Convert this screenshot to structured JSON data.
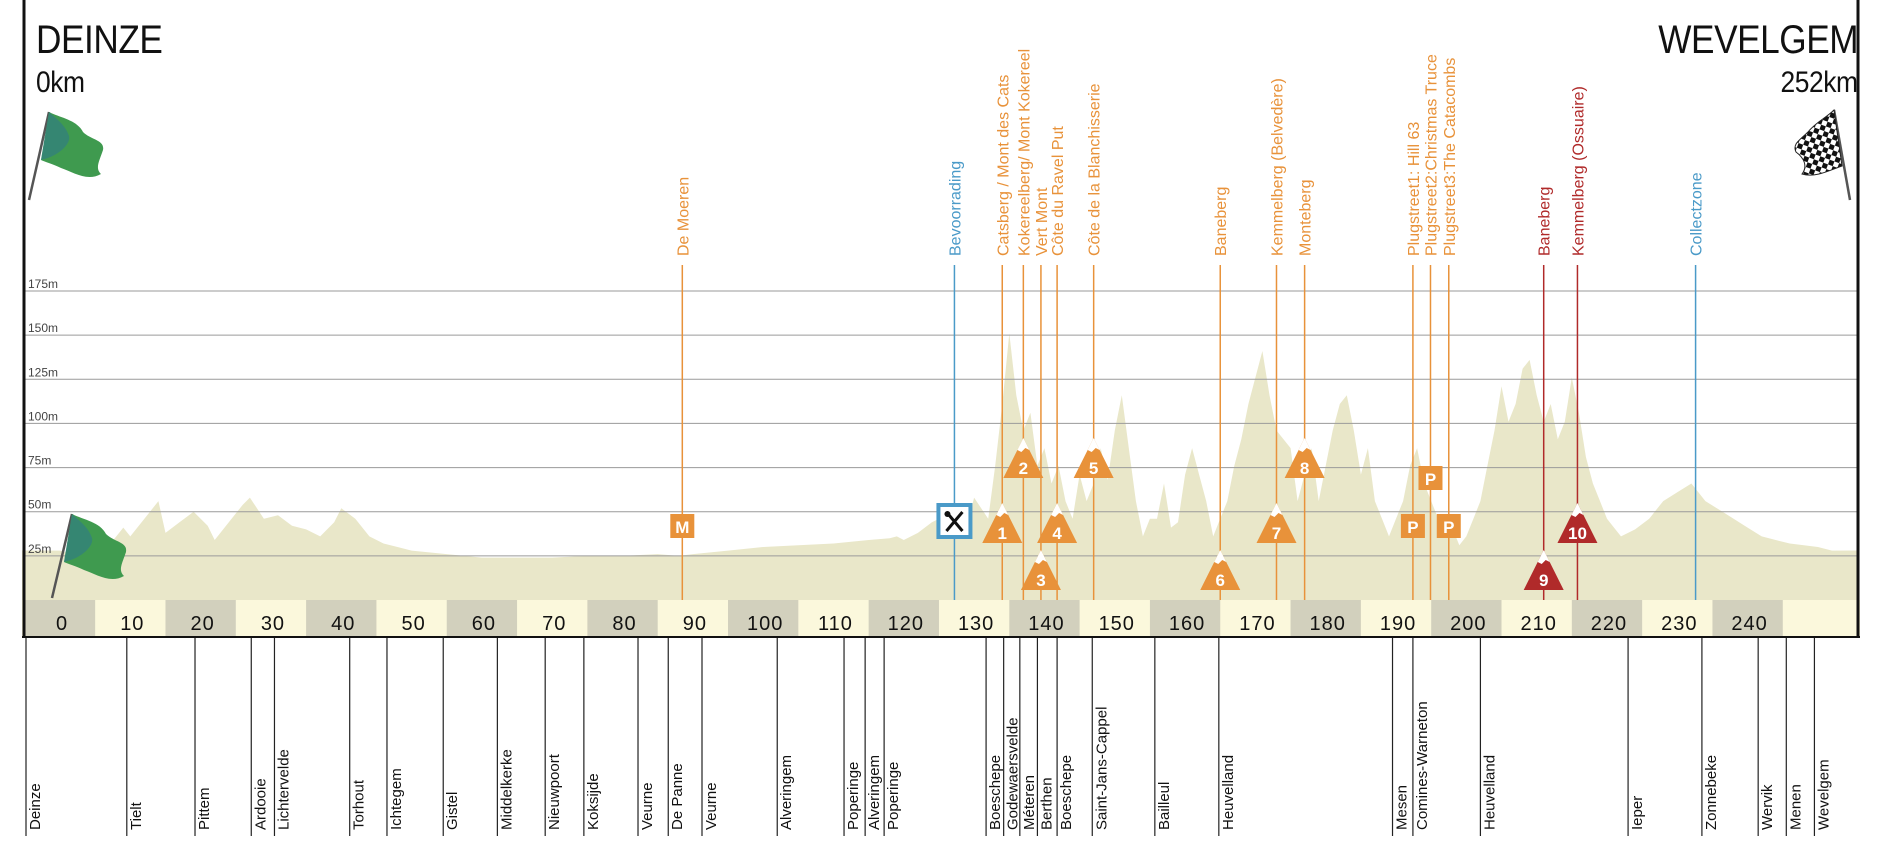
{
  "start": {
    "city": "DEINZE",
    "km": "0km"
  },
  "finish": {
    "city": "WEVELGEM",
    "km": "252km"
  },
  "colors": {
    "climb": "#e8923a",
    "climb_text": "#e09040",
    "feed": "#4a9ac8",
    "red_climb": "#b02a2a",
    "profile": "#e9e7c9",
    "axis_band": "#fbf8dc",
    "axis_block": "#d2d0bd",
    "grid": "#9a9a9a"
  },
  "icons": {
    "start_flag": "green-flag-icon",
    "finish_flag": "checkered-flag-icon",
    "feed_zone": "fork-knife-icon",
    "climb": "mountain-icon",
    "cobbles": "p-marker-icon",
    "meer": "m-marker-icon"
  },
  "elevation_labels": [
    "175m",
    "150m",
    "125m",
    "100m",
    "75m",
    "50m",
    "25m"
  ],
  "elevation_values": [
    175,
    150,
    125,
    100,
    75,
    50,
    25
  ],
  "km_ticks": [
    "0",
    "10",
    "20",
    "30",
    "40",
    "50",
    "60",
    "70",
    "80",
    "90",
    "100",
    "110",
    "120",
    "130",
    "140",
    "150",
    "160",
    "170",
    "180",
    "190",
    "200",
    "210",
    "220",
    "230",
    "240"
  ],
  "km_values": [
    0,
    10,
    20,
    30,
    40,
    50,
    60,
    70,
    80,
    90,
    100,
    110,
    120,
    130,
    140,
    150,
    160,
    170,
    180,
    190,
    200,
    210,
    220,
    230,
    240
  ],
  "chart_data": {
    "type": "area",
    "xlim": [
      0,
      252
    ],
    "ylim": [
      0,
      175
    ],
    "x": [
      0,
      2,
      4,
      5,
      7,
      9,
      10,
      12,
      14,
      15,
      17,
      19,
      21,
      22,
      24,
      26,
      27,
      29,
      31,
      33,
      35,
      37,
      39,
      40,
      42,
      44,
      46,
      48,
      50,
      55,
      60,
      65,
      70,
      75,
      80,
      85,
      88,
      90,
      95,
      100,
      105,
      110,
      115,
      118,
      119,
      120,
      122,
      124,
      125,
      126,
      127,
      128,
      129,
      130,
      131,
      132,
      133,
      134,
      135,
      136,
      137,
      138,
      139,
      140,
      141,
      142,
      143,
      144,
      145,
      146,
      147,
      148,
      149,
      150,
      151,
      152,
      153,
      154,
      155,
      156,
      157,
      158,
      159,
      160,
      161,
      162,
      163,
      164,
      165,
      166,
      167,
      168,
      169,
      170,
      171,
      172,
      173,
      174,
      175,
      176,
      177,
      178,
      179,
      180,
      181,
      182,
      183,
      184,
      185,
      186,
      187,
      188,
      189,
      190,
      191,
      192,
      193,
      194,
      195,
      196,
      197,
      198,
      199,
      200,
      201,
      202,
      203,
      204,
      205,
      206,
      207,
      208,
      209,
      210,
      211,
      212,
      213,
      214,
      215,
      216,
      217,
      218,
      219,
      220,
      221,
      222,
      224,
      226,
      227,
      228,
      230,
      232,
      234,
      236,
      238,
      240,
      242,
      244,
      246,
      248,
      250,
      252
    ],
    "y": [
      12,
      10,
      14,
      16,
      15,
      25,
      20,
      30,
      40,
      22,
      28,
      34,
      26,
      18,
      28,
      38,
      42,
      30,
      32,
      26,
      24,
      20,
      28,
      36,
      30,
      20,
      16,
      14,
      12,
      10,
      8,
      8,
      8,
      9,
      9,
      10,
      9,
      10,
      12,
      14,
      15,
      16,
      18,
      19,
      20,
      18,
      22,
      28,
      30,
      38,
      32,
      24,
      26,
      42,
      36,
      30,
      60,
      95,
      135,
      100,
      80,
      90,
      60,
      70,
      50,
      60,
      40,
      30,
      55,
      40,
      50,
      70,
      52,
      80,
      100,
      70,
      40,
      20,
      30,
      30,
      50,
      25,
      28,
      55,
      70,
      55,
      40,
      20,
      30,
      40,
      60,
      75,
      95,
      110,
      125,
      100,
      80,
      75,
      70,
      40,
      55,
      70,
      40,
      60,
      80,
      95,
      100,
      80,
      55,
      70,
      40,
      30,
      20,
      30,
      40,
      60,
      70,
      50,
      40,
      30,
      20,
      25,
      15,
      20,
      30,
      40,
      60,
      80,
      105,
      85,
      95,
      115,
      120,
      100,
      85,
      95,
      75,
      85,
      110,
      90,
      65,
      50,
      40,
      30,
      25,
      20,
      24,
      30,
      35,
      40,
      45,
      50,
      40,
      35,
      30,
      25,
      20,
      18,
      16,
      15,
      14,
      12
    ],
    "climbs": [
      {
        "km": 134.0,
        "label": "Catsberg / Mont des Cats",
        "badge": "1",
        "row": 2,
        "style": "mountain",
        "color": "orange"
      },
      {
        "km": 137.0,
        "label": "Kokereelberg/ Mont Kokereel",
        "badge": "2",
        "row": 0,
        "style": "mountain",
        "color": "orange"
      },
      {
        "km": 139.5,
        "label": "Vert Mont",
        "badge": "3",
        "row": 3,
        "style": "mountain",
        "color": "orange"
      },
      {
        "km": 141.8,
        "label": "Côte du Ravel Put",
        "badge": "4",
        "row": 2,
        "style": "mountain",
        "color": "orange"
      },
      {
        "km": 147.0,
        "label": "Côte de la Blanchisserie",
        "badge": "5",
        "row": 0,
        "style": "mountain",
        "color": "orange"
      },
      {
        "km": 165.0,
        "label": "Baneberg",
        "badge": "6",
        "row": 3,
        "style": "mountain",
        "color": "orange"
      },
      {
        "km": 173.0,
        "label": "Kemmelberg (Belvedère)",
        "badge": "7",
        "row": 2,
        "style": "mountain",
        "color": "orange"
      },
      {
        "km": 177.0,
        "label": "Monteberg",
        "badge": "8",
        "row": 0,
        "style": "mountain",
        "color": "orange"
      },
      {
        "km": 211.0,
        "label": "Baneberg",
        "badge": "9",
        "row": 3,
        "style": "mountain",
        "color": "red"
      },
      {
        "km": 215.8,
        "label": "Kemmelberg (Ossuaire)",
        "badge": "10",
        "row": 2,
        "style": "mountain",
        "color": "red"
      }
    ],
    "sectors": [
      {
        "km": 88.5,
        "label": "De Moeren",
        "badge": "M",
        "row": 2,
        "color": "orange"
      },
      {
        "km": 192.4,
        "label": "Plugstreet1: Hill 63",
        "badge": "P",
        "row": 2,
        "color": "orange"
      },
      {
        "km": 194.9,
        "label": "Plugstreet2:Christmas Truce",
        "badge": "P",
        "row": 1,
        "color": "orange"
      },
      {
        "km": 197.5,
        "label": "Plugstreet3:The Catacombs",
        "badge": "P",
        "row": 2,
        "color": "orange"
      }
    ],
    "feed_zone": {
      "km": 127.2,
      "label": "Bevoorrading"
    },
    "collect_zone": {
      "km": 232.6,
      "label": "Collectzone"
    },
    "places": [
      {
        "km": 0,
        "name": "Deinze"
      },
      {
        "km": 9.5,
        "name": "Tielt"
      },
      {
        "km": 19.2,
        "name": "Pittem"
      },
      {
        "km": 27.2,
        "name": "Ardooie"
      },
      {
        "km": 30.5,
        "name": "Lichtervelde"
      },
      {
        "km": 41.2,
        "name": "Torhout"
      },
      {
        "km": 46.5,
        "name": "Ichtegem"
      },
      {
        "km": 54.5,
        "name": "Gistel"
      },
      {
        "km": 62.2,
        "name": "Middelkerke"
      },
      {
        "km": 69.0,
        "name": "Nieuwpoort"
      },
      {
        "km": 74.5,
        "name": "Koksijde"
      },
      {
        "km": 82.2,
        "name": "Veurne"
      },
      {
        "km": 86.5,
        "name": "De Panne"
      },
      {
        "km": 91.3,
        "name": "Veurne"
      },
      {
        "km": 102.0,
        "name": "Alveringem"
      },
      {
        "km": 111.5,
        "name": "Poperinge"
      },
      {
        "km": 114.5,
        "name": "Alveringem"
      },
      {
        "km": 117.2,
        "name": "Poperinge"
      },
      {
        "km": 131.7,
        "name": "Boeschepe"
      },
      {
        "km": 134.2,
        "name": "Godewaersvelde"
      },
      {
        "km": 136.5,
        "name": "Méteren"
      },
      {
        "km": 139.0,
        "name": "Berthen"
      },
      {
        "km": 141.8,
        "name": "Boeschepe"
      },
      {
        "km": 146.8,
        "name": "Saint-Jans-Cappel"
      },
      {
        "km": 155.7,
        "name": "Bailleul"
      },
      {
        "km": 164.8,
        "name": "Heuvelland"
      },
      {
        "km": 189.5,
        "name": "Mesen"
      },
      {
        "km": 192.4,
        "name": "Comines-Warneton"
      },
      {
        "km": 202.0,
        "name": "Heuvelland"
      },
      {
        "km": 223.0,
        "name": "Ieper"
      },
      {
        "km": 233.5,
        "name": "Zonnebeke"
      },
      {
        "km": 241.5,
        "name": "Wervik"
      },
      {
        "km": 245.5,
        "name": "Menen"
      },
      {
        "km": 249.5,
        "name": "Wevelgem"
      }
    ]
  }
}
